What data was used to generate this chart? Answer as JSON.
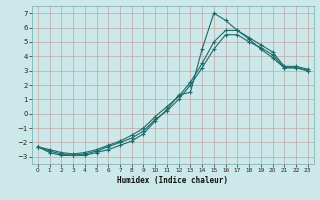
{
  "xlabel": "Humidex (Indice chaleur)",
  "ylabel": "",
  "bg_color": "#cce8e8",
  "line_color": "#1a6b6b",
  "xlim": [
    -0.5,
    23.5
  ],
  "ylim": [
    -3.5,
    7.5
  ],
  "xticks": [
    0,
    1,
    2,
    3,
    4,
    5,
    6,
    7,
    8,
    9,
    10,
    11,
    12,
    13,
    14,
    15,
    16,
    17,
    18,
    19,
    20,
    21,
    22,
    23
  ],
  "yticks": [
    -3,
    -2,
    -1,
    0,
    1,
    2,
    3,
    4,
    5,
    6,
    7
  ],
  "line1_x": [
    0,
    1,
    2,
    3,
    4,
    5,
    6,
    7,
    8,
    9,
    10,
    11,
    12,
    13,
    14,
    15,
    16,
    17,
    18,
    19,
    20,
    21,
    22,
    23
  ],
  "line1_y": [
    -2.3,
    -2.7,
    -2.9,
    -2.9,
    -2.9,
    -2.7,
    -2.5,
    -2.2,
    -1.9,
    -1.4,
    -0.5,
    0.3,
    1.3,
    1.5,
    4.5,
    7.0,
    6.5,
    5.8,
    5.2,
    4.5,
    3.9,
    3.2,
    3.2,
    3.0
  ],
  "line2_x": [
    0,
    1,
    2,
    3,
    4,
    5,
    6,
    7,
    8,
    9,
    10,
    11,
    12,
    13,
    14,
    15,
    16,
    17,
    18,
    19,
    20,
    21,
    22,
    23
  ],
  "line2_y": [
    -2.3,
    -2.6,
    -2.8,
    -2.9,
    -2.8,
    -2.6,
    -2.3,
    -2.0,
    -1.7,
    -1.2,
    -0.4,
    0.2,
    1.0,
    2.0,
    3.2,
    4.5,
    5.5,
    5.5,
    5.0,
    4.6,
    4.1,
    3.2,
    3.2,
    3.0
  ],
  "line3_x": [
    0,
    1,
    2,
    3,
    4,
    5,
    6,
    7,
    8,
    9,
    10,
    11,
    12,
    13,
    14,
    15,
    16,
    17,
    18,
    19,
    20,
    21,
    22,
    23
  ],
  "line3_y": [
    -2.3,
    -2.5,
    -2.7,
    -2.8,
    -2.7,
    -2.5,
    -2.2,
    -1.9,
    -1.5,
    -1.0,
    -0.2,
    0.5,
    1.2,
    2.2,
    3.5,
    5.0,
    5.8,
    5.8,
    5.3,
    4.8,
    4.3,
    3.3,
    3.3,
    3.1
  ]
}
